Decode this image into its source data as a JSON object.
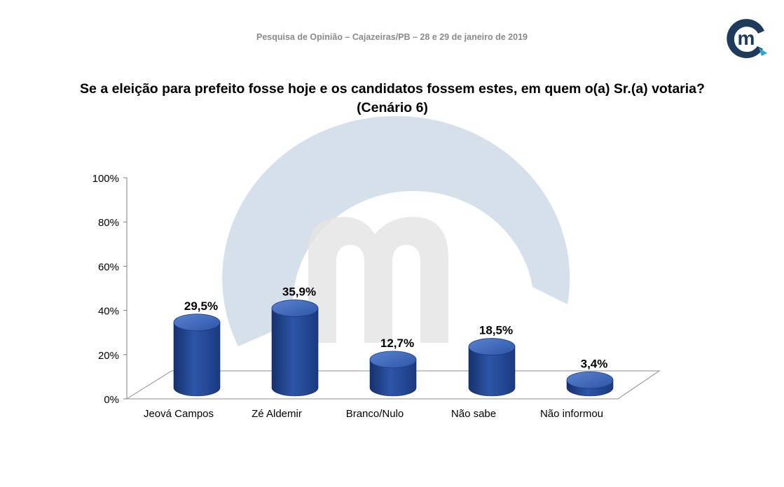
{
  "header": {
    "text": "Pesquisa de Opinião – Cajazeiras/PB – 28 e 29 de janeiro de 2019"
  },
  "question": {
    "line1": "Se a eleição para prefeito fosse hoje e os candidatos fossem estes, em quem o(a) Sr.(a) votaria?",
    "line2": "(Cenário 6)"
  },
  "logo": {
    "letter": "m",
    "color": "#1f3b5c",
    "accent": "#2aa6d8"
  },
  "colors": {
    "bar_dark": "#16316e",
    "bar_mid": "#2d56a8",
    "bar_light": "#5a82cf",
    "watermark": "#c8d6e3"
  },
  "chart_data": {
    "type": "bar",
    "categories": [
      "Jeová Campos",
      "Zé Aldemir",
      "Branco/Nulo",
      "Não sabe",
      "Não informou"
    ],
    "values": [
      29.5,
      35.9,
      12.7,
      18.5,
      3.4
    ],
    "value_labels": [
      "29,5%",
      "35,9%",
      "12,7%",
      "18,5%",
      "3,4%"
    ],
    "yticks": [
      "0%",
      "20%",
      "40%",
      "60%",
      "80%",
      "100%"
    ],
    "ylim": [
      0,
      100
    ],
    "grid": false,
    "legend": "none"
  }
}
